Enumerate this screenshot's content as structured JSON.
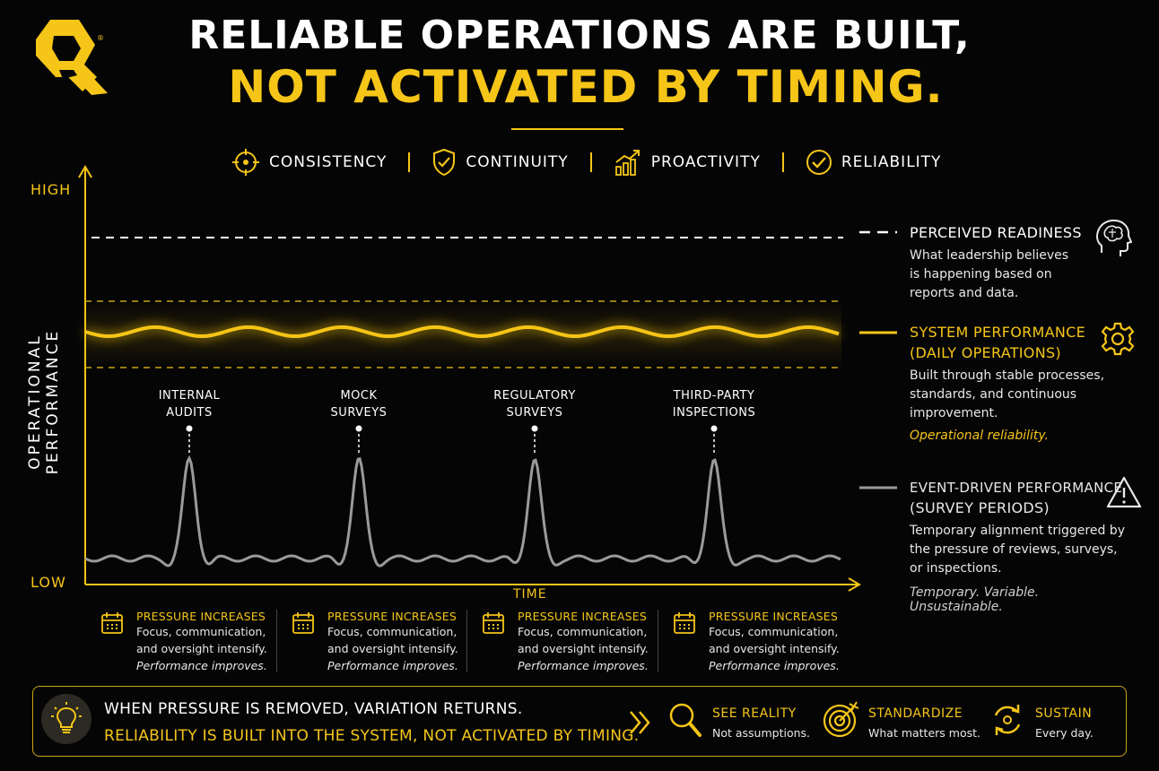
{
  "title": {
    "line1": "RELIABLE OPERATIONS ARE BUILT,",
    "line2": "NOT ACTIVATED BY TIMING."
  },
  "pillars": [
    {
      "label": "CONSISTENCY",
      "icon": "crosshair-icon"
    },
    {
      "label": "CONTINUITY",
      "icon": "shield-check-icon"
    },
    {
      "label": "PROACTIVITY",
      "icon": "growth-chart-icon"
    },
    {
      "label": "RELIABILITY",
      "icon": "check-circle-icon"
    }
  ],
  "chart": {
    "y_axis_label": "OPERATIONAL PERFORMANCE",
    "y_high": "HIGH",
    "y_low": "LOW",
    "x_axis_label": "TIME",
    "events": [
      {
        "line1": "INTERNAL",
        "line2": "AUDITS"
      },
      {
        "line1": "MOCK",
        "line2": "SURVEYS"
      },
      {
        "line1": "REGULATORY",
        "line2": "SURVEYS"
      },
      {
        "line1": "THIRD-PARTY",
        "line2": "INSPECTIONS"
      }
    ]
  },
  "legend": {
    "perceived": {
      "title": "PERCEIVED READINESS",
      "body": [
        "What leadership believes",
        "is happening based on",
        "reports and data."
      ],
      "icon": "brain-head-icon"
    },
    "system": {
      "title1": "SYSTEM PERFORMANCE",
      "title2": "(DAILY OPERATIONS)",
      "body": [
        "Built through stable processes,",
        "standards, and continuous",
        "improvement."
      ],
      "note": "Operational reliability.",
      "icon": "gear-icon"
    },
    "event": {
      "title1": "EVENT-DRIVEN PERFORMANCE",
      "title2": "(SURVEY PERIODS)",
      "body": [
        "Temporary alignment triggered by",
        "the pressure of reviews, surveys,",
        "or inspections."
      ],
      "note": "Temporary. Variable. Unsustainable.",
      "icon": "warning-icon"
    }
  },
  "pressure_cards": [
    {
      "title": "PRESSURE INCREASES",
      "line1": "Focus, communication,",
      "line2": "and oversight intensify.",
      "note": "Performance improves."
    },
    {
      "title": "PRESSURE INCREASES",
      "line1": "Focus, communication,",
      "line2": "and oversight intensify.",
      "note": "Performance improves."
    },
    {
      "title": "PRESSURE INCREASES",
      "line1": "Focus, communication,",
      "line2": "and oversight intensify.",
      "note": "Performance improves."
    },
    {
      "title": "PRESSURE INCREASES",
      "line1": "Focus, communication,",
      "line2": "and oversight intensify.",
      "note": "Performance improves."
    }
  ],
  "banner": {
    "line1": "WHEN PRESSURE IS REMOVED, VARIATION RETURNS.",
    "line2": "RELIABILITY IS BUILT INTO THE SYSTEM, NOT ACTIVATED BY TIMING.",
    "items": [
      {
        "title": "SEE REALITY",
        "sub": "Not assumptions.",
        "icon": "magnifier-icon"
      },
      {
        "title": "STANDARDIZE",
        "sub": "What matters most.",
        "icon": "target-icon"
      },
      {
        "title": "SUSTAIN",
        "sub": "Every day.",
        "icon": "cycle-icon"
      }
    ]
  },
  "colors": {
    "accent": "#f5c518",
    "background": "#050505",
    "event_line": "#9a9a9a",
    "text": "#ffffff"
  }
}
